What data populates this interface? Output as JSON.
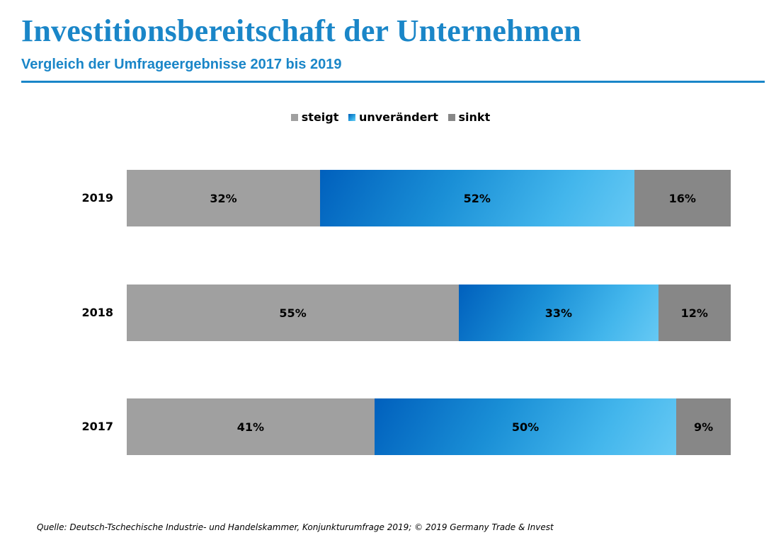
{
  "title": "Investitionsbereitschaft der Unternehmen",
  "subtitle": "Vergleich der Umfrageergebnisse 2017 bis 2019",
  "legend": [
    {
      "label": "steigt",
      "color": "#a0a0a0"
    },
    {
      "label": "unverändert",
      "color": "#1a8fd6"
    },
    {
      "label": "sinkt",
      "color": "#878787"
    }
  ],
  "source": "Quelle: Deutsch-Tschechische Industrie- und Handelskammer, Konjunkturumfrage 2019; © 2019 Germany Trade & Invest",
  "chart_data": {
    "type": "bar",
    "orientation": "horizontal",
    "stacked": "percent",
    "title": "Investitionsbereitschaft der Unternehmen",
    "subtitle": "Vergleich der Umfrageergebnisse 2017 bis 2019",
    "categories": [
      "2019",
      "2018",
      "2017"
    ],
    "series": [
      {
        "name": "steigt",
        "values": [
          32,
          55,
          41
        ],
        "labels": [
          "32%",
          "55%",
          "41%"
        ],
        "color": "#a0a0a0"
      },
      {
        "name": "unverändert",
        "values": [
          52,
          33,
          50
        ],
        "labels": [
          "52%",
          "33%",
          "50%"
        ],
        "color": "#1a8fd6"
      },
      {
        "name": "sinkt",
        "values": [
          16,
          12,
          9
        ],
        "labels": [
          "16%",
          "12%",
          "9%"
        ],
        "color": "#878787"
      }
    ],
    "legend_position": "top-center",
    "grid": false
  }
}
